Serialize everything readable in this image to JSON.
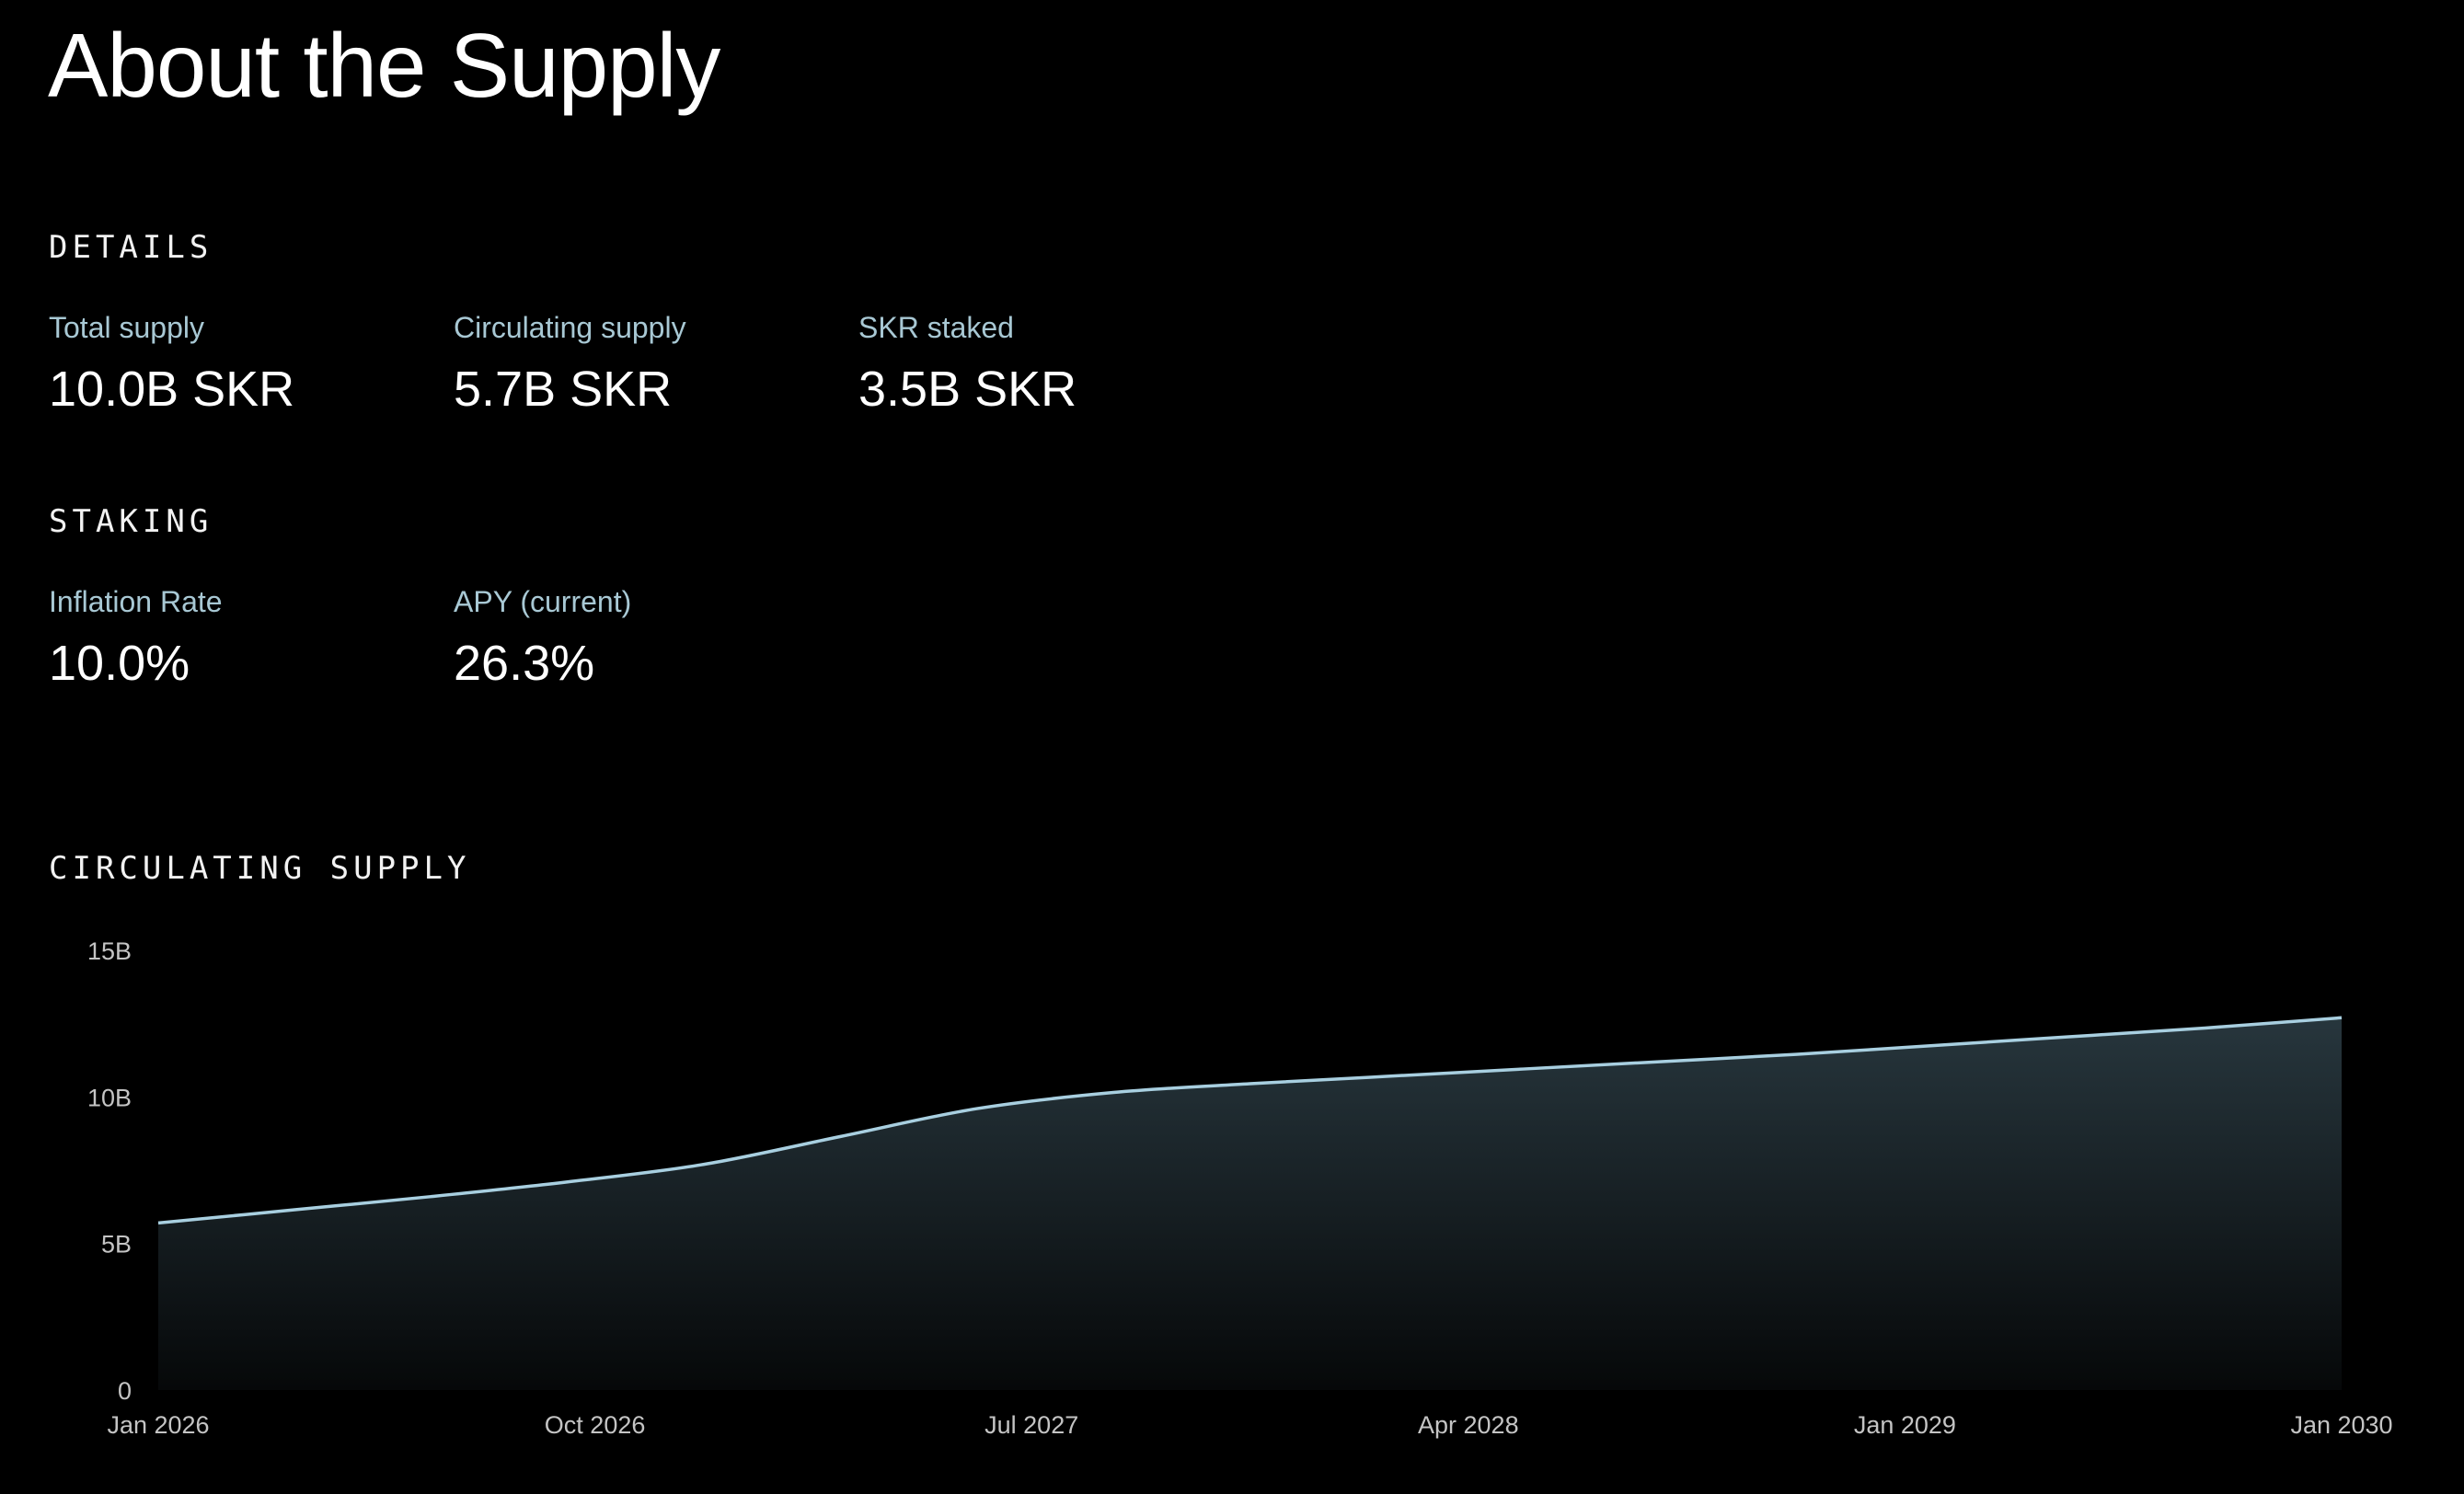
{
  "title": "About the Supply",
  "details": {
    "heading": "DETAILS",
    "stats": [
      {
        "label": "Total supply",
        "value": "10.0B SKR"
      },
      {
        "label": "Circulating supply",
        "value": "5.7B SKR"
      },
      {
        "label": "SKR staked",
        "value": "3.5B SKR"
      }
    ]
  },
  "staking": {
    "heading": "STAKING",
    "stats": [
      {
        "label": "Inflation Rate",
        "value": "10.0%"
      },
      {
        "label": "APY (current)",
        "value": "26.3%"
      }
    ]
  },
  "chart_section": {
    "heading": "CIRCULATING SUPPLY"
  },
  "chart_data": {
    "type": "area",
    "title": "CIRCULATING SUPPLY",
    "xlabel": "",
    "ylabel": "",
    "x_ticks": [
      "Jan 2026",
      "Oct 2026",
      "Jul 2027",
      "Apr 2028",
      "Jan 2029",
      "Jan 2030"
    ],
    "y_ticks": [
      "0",
      "5B",
      "10B",
      "15B"
    ],
    "ylim": [
      0,
      15
    ],
    "y_unit": "B",
    "grid": false,
    "legend": "none",
    "series": [
      {
        "x": [
          "2026-01",
          "2026-04",
          "2026-07",
          "2026-10",
          "2027-01",
          "2027-04",
          "2027-07",
          "2027-10",
          "2028-01",
          "2028-04",
          "2028-07",
          "2028-10",
          "2029-01",
          "2029-04",
          "2029-07",
          "2029-10",
          "2030-01"
        ],
        "values": [
          5.7,
          6.15,
          6.6,
          7.1,
          7.7,
          8.65,
          9.6,
          10.15,
          10.45,
          10.7,
          10.95,
          11.2,
          11.45,
          11.75,
          12.05,
          12.35,
          12.7
        ]
      }
    ],
    "colors": {
      "line": "#a8cfe0",
      "fill_top": "#27363d",
      "fill_bottom": "#060809"
    }
  }
}
